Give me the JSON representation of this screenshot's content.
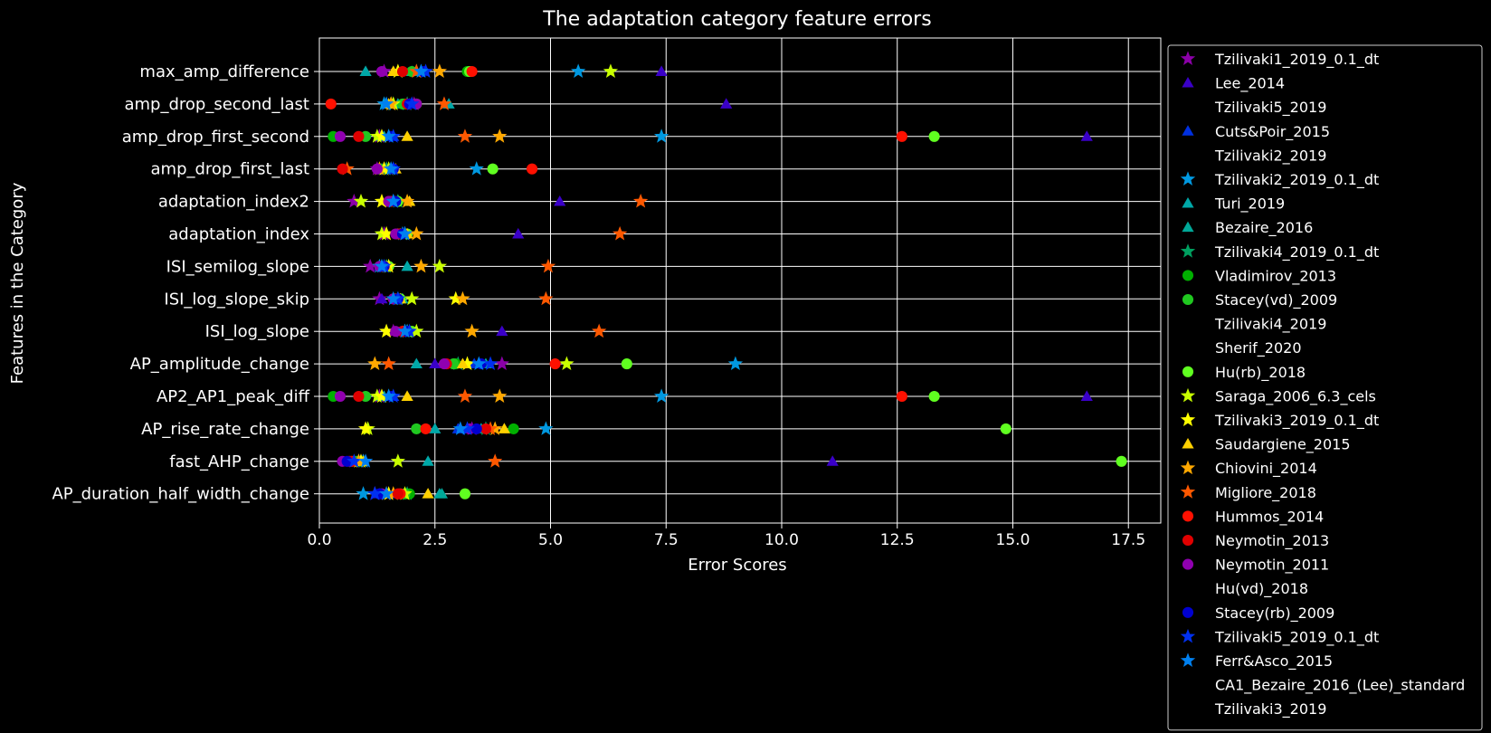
{
  "chart_data": {
    "type": "scatter",
    "title": "The adaptation category feature errors",
    "xlabel": "Error Scores",
    "ylabel": "Features in the Category",
    "xlim": [
      0,
      18.2
    ],
    "xticks": [
      0.0,
      2.5,
      5.0,
      7.5,
      10.0,
      12.5,
      15.0,
      17.5
    ],
    "xtick_labels": [
      "0.0",
      "2.5",
      "5.0",
      "7.5",
      "10.0",
      "12.5",
      "15.0",
      "17.5"
    ],
    "grid": true,
    "legend_placement": "outside-right",
    "categories": [
      "max_amp_difference",
      "amp_drop_second_last",
      "amp_drop_first_second",
      "amp_drop_first_last",
      "adaptation_index2",
      "adaptation_index",
      "ISI_semilog_slope",
      "ISI_log_slope_skip",
      "ISI_log_slope",
      "AP_amplitude_change",
      "AP2_AP1_peak_diff",
      "AP_rise_rate_change",
      "fast_AHP_change",
      "AP_duration_half_width_change"
    ],
    "series": [
      {
        "name": "Tzilivaki1_2019_0.1_dt",
        "marker": "star",
        "color": "#8b00a8",
        "values": [
          1.4,
          2.05,
          1.3,
          1.25,
          0.75,
          1.4,
          1.1,
          1.3,
          1.6,
          3.95,
          1.3,
          3.3,
          0.85,
          1.2
        ]
      },
      {
        "name": "Lee_2014",
        "marker": "triangle",
        "color": "#3a00c8",
        "values": [
          7.4,
          8.8,
          16.6,
          1.35,
          5.2,
          4.3,
          1.3,
          1.35,
          3.95,
          2.5,
          16.6,
          3.2,
          11.1,
          1.3
        ]
      },
      {
        "name": "Tzilivaki5_2019",
        "marker": "none",
        "color": "#000000",
        "values": [
          null,
          null,
          null,
          null,
          null,
          null,
          null,
          null,
          null,
          null,
          null,
          null,
          null,
          null
        ]
      },
      {
        "name": "Cuts&Poir_2015",
        "marker": "triangle",
        "color": "#0030e0",
        "values": [
          2.2,
          1.95,
          1.6,
          1.55,
          1.6,
          1.8,
          1.35,
          1.65,
          1.85,
          3.35,
          1.6,
          3.0,
          0.95,
          1.5
        ]
      },
      {
        "name": "Tzilivaki2_2019",
        "marker": "none",
        "color": "#000000",
        "values": [
          null,
          null,
          null,
          null,
          null,
          null,
          null,
          null,
          null,
          null,
          null,
          null,
          null,
          null
        ]
      },
      {
        "name": "Tzilivaki2_2019_0.1_dt",
        "marker": "star",
        "color": "#0098e0",
        "values": [
          5.6,
          1.4,
          7.4,
          3.4,
          1.6,
          1.8,
          1.3,
          1.7,
          1.9,
          9.0,
          7.4,
          4.9,
          0.95,
          0.95
        ]
      },
      {
        "name": "Turi_2019",
        "marker": "triangle",
        "color": "#00a8a8",
        "values": [
          1.0,
          2.8,
          1.4,
          1.4,
          1.55,
          1.7,
          1.9,
          1.75,
          1.85,
          2.1,
          1.4,
          2.5,
          2.35,
          2.6
        ]
      },
      {
        "name": "Bezaire_2016",
        "marker": "triangle",
        "color": "#00a898",
        "values": [
          2.0,
          1.7,
          1.35,
          1.35,
          1.65,
          1.75,
          1.4,
          1.8,
          1.9,
          3.6,
          1.35,
          3.5,
          0.9,
          2.65
        ]
      },
      {
        "name": "Tzilivaki4_2019_0.1_dt",
        "marker": "star",
        "color": "#00a060",
        "values": [
          2.1,
          1.9,
          1.5,
          1.45,
          1.7,
          1.85,
          1.45,
          1.7,
          1.85,
          3.0,
          1.5,
          3.6,
          0.85,
          1.9
        ]
      },
      {
        "name": "Vladimirov_2013",
        "marker": "circle",
        "color": "#00b000",
        "values": [
          3.2,
          1.85,
          0.3,
          1.3,
          1.6,
          1.7,
          1.3,
          1.65,
          1.9,
          2.95,
          0.3,
          4.2,
          0.9,
          1.95
        ]
      },
      {
        "name": "Stacey(vd)_2009",
        "marker": "circle",
        "color": "#20c820",
        "values": [
          2.0,
          1.8,
          1.0,
          1.3,
          1.55,
          1.75,
          1.35,
          1.7,
          1.8,
          2.9,
          1.0,
          2.1,
          0.8,
          1.85
        ]
      },
      {
        "name": "Tzilivaki4_2019",
        "marker": "none",
        "color": "#000000",
        "values": [
          null,
          null,
          null,
          null,
          null,
          null,
          null,
          null,
          null,
          null,
          null,
          null,
          null,
          null
        ]
      },
      {
        "name": "Sherif_2020",
        "marker": "none",
        "color": "#000000",
        "values": [
          null,
          null,
          null,
          null,
          null,
          null,
          null,
          null,
          null,
          null,
          null,
          null,
          null,
          null
        ]
      },
      {
        "name": "Hu(rb)_2018",
        "marker": "circle",
        "color": "#60ff20",
        "values": [
          3.25,
          2.1,
          13.3,
          3.75,
          1.7,
          1.9,
          1.5,
          1.75,
          2.0,
          6.65,
          13.3,
          14.85,
          17.35,
          3.15
        ]
      },
      {
        "name": "Saraga_2006_6.3_cels",
        "marker": "star",
        "color": "#c8ff00",
        "values": [
          6.3,
          1.6,
          1.25,
          1.5,
          0.9,
          1.35,
          2.6,
          2.0,
          2.1,
          5.35,
          1.25,
          1.05,
          1.7,
          1.85
        ]
      },
      {
        "name": "Tzilivaki3_2019_0.1_dt",
        "marker": "star",
        "color": "#ffff00",
        "values": [
          1.7,
          1.55,
          1.35,
          1.4,
          1.35,
          1.45,
          1.5,
          2.95,
          1.45,
          3.2,
          1.35,
          1.0,
          0.9,
          1.5
        ]
      },
      {
        "name": "Saudargiene_2015",
        "marker": "triangle",
        "color": "#ffd000",
        "values": [
          1.6,
          1.5,
          1.9,
          1.65,
          1.95,
          1.9,
          1.45,
          1.75,
          1.8,
          3.1,
          1.9,
          4.0,
          0.95,
          2.35
        ]
      },
      {
        "name": "Chiovini_2014",
        "marker": "star",
        "color": "#ffa800",
        "values": [
          2.6,
          1.55,
          3.9,
          1.3,
          1.9,
          2.1,
          2.2,
          3.1,
          3.3,
          1.2,
          3.9,
          3.8,
          0.85,
          1.6
        ]
      },
      {
        "name": "Migliore_2018",
        "marker": "star",
        "color": "#ff5800",
        "values": [
          2.1,
          2.7,
          3.15,
          0.6,
          6.95,
          6.5,
          4.95,
          4.9,
          6.05,
          1.5,
          3.15,
          3.7,
          3.8,
          1.45
        ]
      },
      {
        "name": "Hummos_2014",
        "marker": "circle",
        "color": "#ff1000",
        "values": [
          3.3,
          0.25,
          12.6,
          4.6,
          1.5,
          1.75,
          1.4,
          1.65,
          1.8,
          5.1,
          12.6,
          2.3,
          0.7,
          1.75
        ]
      },
      {
        "name": "Neymotin_2013",
        "marker": "circle",
        "color": "#e00000",
        "values": [
          1.8,
          1.9,
          0.85,
          0.5,
          1.55,
          1.7,
          1.35,
          1.6,
          1.8,
          2.75,
          0.85,
          3.6,
          0.65,
          1.7
        ]
      },
      {
        "name": "Neymotin_2011",
        "marker": "circle",
        "color": "#9000b0",
        "values": [
          1.35,
          2.1,
          0.45,
          1.25,
          1.5,
          1.65,
          1.3,
          1.6,
          1.65,
          2.7,
          0.45,
          3.25,
          0.5,
          1.35
        ]
      },
      {
        "name": "Hu(vd)_2018",
        "marker": "none",
        "color": "#000000",
        "values": [
          null,
          null,
          null,
          null,
          null,
          null,
          null,
          null,
          null,
          null,
          null,
          null,
          null,
          null
        ]
      },
      {
        "name": "Stacey(rb)_2009",
        "marker": "circle",
        "color": "#0000d0",
        "values": [
          2.25,
          1.95,
          1.55,
          1.6,
          1.65,
          1.8,
          1.4,
          1.7,
          1.9,
          3.5,
          1.55,
          3.4,
          0.6,
          1.3
        ]
      },
      {
        "name": "Tzilivaki5_2019_0.1_dt",
        "marker": "star",
        "color": "#0030f0",
        "values": [
          2.3,
          2.0,
          1.6,
          1.6,
          1.6,
          1.85,
          1.4,
          1.7,
          1.95,
          3.7,
          1.6,
          3.2,
          0.75,
          1.2
        ]
      },
      {
        "name": "Ferr&Asco_2015",
        "marker": "star",
        "color": "#0080f0",
        "values": [
          2.2,
          1.45,
          1.5,
          1.55,
          1.6,
          1.85,
          1.35,
          1.6,
          1.85,
          3.45,
          1.5,
          3.05,
          1.0,
          1.45
        ]
      },
      {
        "name": "CA1_Bezaire_2016_(Lee)_standard",
        "marker": "none",
        "color": "#000000",
        "values": [
          null,
          null,
          null,
          null,
          null,
          null,
          null,
          null,
          null,
          null,
          null,
          null,
          null,
          null
        ]
      },
      {
        "name": "Tzilivaki3_2019",
        "marker": "none",
        "color": "#000000",
        "values": [
          null,
          null,
          null,
          null,
          null,
          null,
          null,
          null,
          null,
          null,
          null,
          null,
          null,
          null
        ]
      }
    ]
  }
}
